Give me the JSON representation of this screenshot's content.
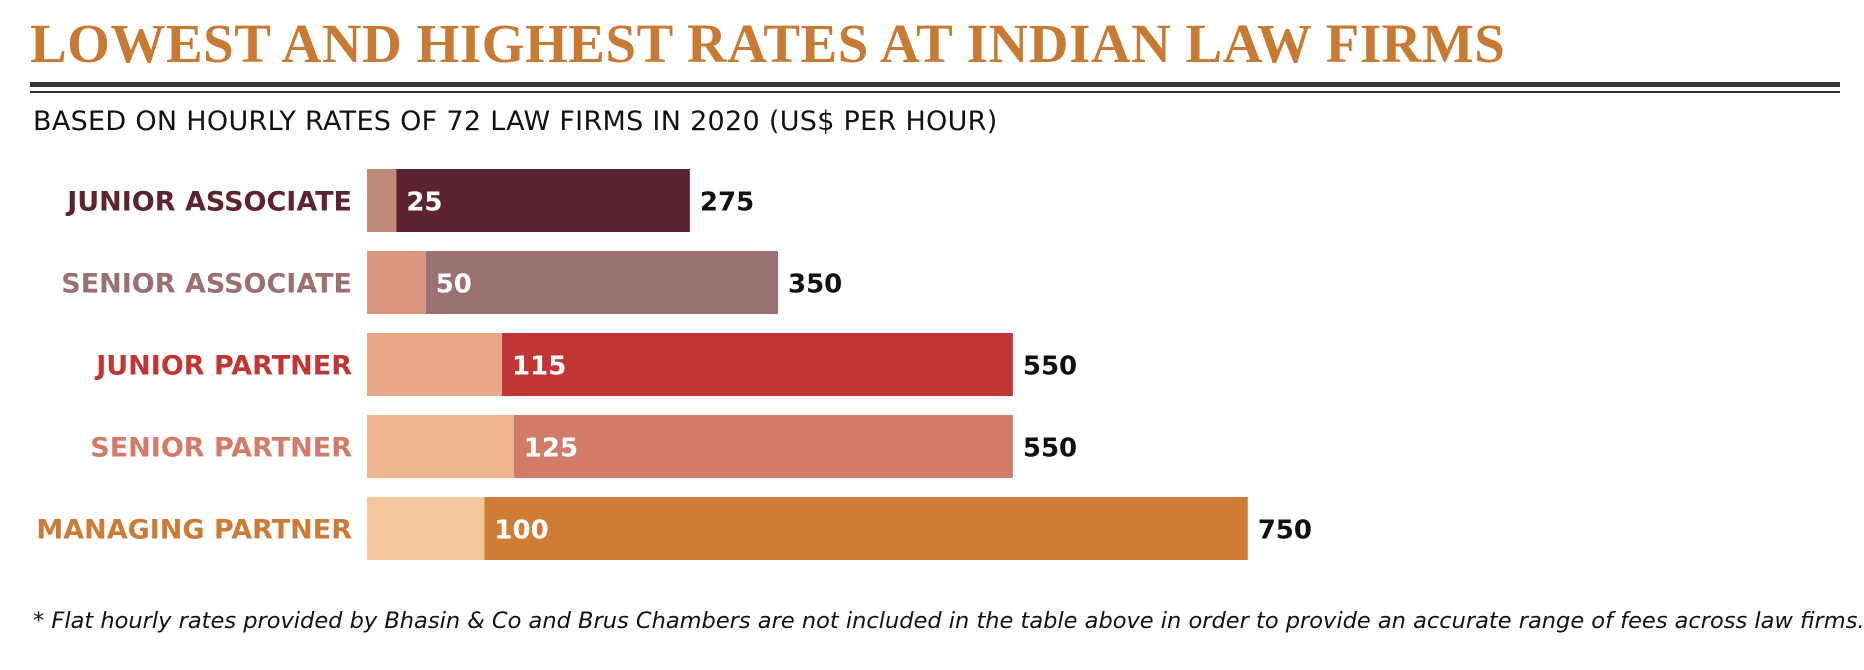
{
  "header": {
    "title": "LOWEST AND HIGHEST RATES AT INDIAN LAW FIRMS",
    "subtitle": "BASED ON HOURLY RATES OF 72 LAW FIRMS IN 2020 (US$ PER HOUR)"
  },
  "footnote": "* Flat hourly rates provided by Bhasin & Co and Brus Chambers are not included in the table above in order to provide an accurate range of fees across law firms.",
  "chart_data": {
    "type": "bar",
    "orientation": "horizontal",
    "title": "LOWEST AND HIGHEST RATES AT INDIAN LAW FIRMS",
    "subtitle": "BASED ON HOURLY RATES OF 72 LAW FIRMS IN 2020 (US$ PER HOUR)",
    "categories": [
      "JUNIOR ASSOCIATE",
      "SENIOR ASSOCIATE",
      "JUNIOR PARTNER",
      "SENIOR PARTNER",
      "MANAGING PARTNER"
    ],
    "series": [
      {
        "name": "Lowest",
        "values": [
          25,
          50,
          115,
          125,
          100
        ]
      },
      {
        "name": "Highest",
        "values": [
          275,
          350,
          550,
          550,
          750
        ]
      }
    ],
    "xlim": [
      0,
      750
    ],
    "grid": false,
    "colors": {
      "labels": [
        "#5e2330",
        "#9a7070",
        "#c03634",
        "#d47a68",
        "#cb7b35"
      ],
      "low_bars": [
        "#bf8878",
        "#d9977f",
        "#eba685",
        "#efb58e",
        "#f4c89c"
      ],
      "high_bars": [
        "#5e2330",
        "#9a7070",
        "#c03634",
        "#d07c68",
        "#cf7d35"
      ]
    }
  }
}
